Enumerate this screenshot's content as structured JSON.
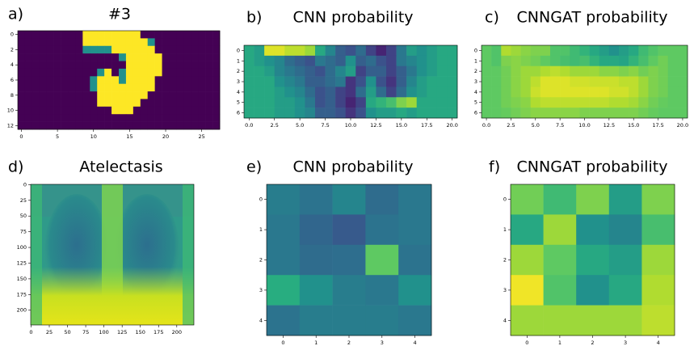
{
  "chart_data": [
    {
      "type": "heatmap",
      "label": "a)",
      "title": "#3",
      "colormap": "viridis",
      "xlim": [
        -0.5,
        27.5
      ],
      "ylim": [
        12.5,
        -0.5
      ],
      "xticks": [
        0,
        5,
        10,
        15,
        20,
        25
      ],
      "yticks": [
        0,
        2,
        4,
        6,
        8,
        10,
        12
      ],
      "values": [
        [
          0,
          0,
          0,
          0,
          0,
          0,
          0,
          0,
          0,
          1,
          1,
          1,
          1,
          1,
          1,
          1,
          1,
          0,
          0,
          0,
          0,
          0,
          0,
          0,
          0,
          0,
          0,
          0
        ],
        [
          0,
          0,
          0,
          0,
          0,
          0,
          0,
          0,
          0,
          1,
          1,
          1,
          1,
          1,
          1,
          1,
          1,
          1,
          0.5,
          0,
          0,
          0,
          0,
          0,
          0,
          0,
          0,
          0
        ],
        [
          0,
          0,
          0,
          0,
          0,
          0,
          0,
          0,
          0,
          0.5,
          0.5,
          0.5,
          0.5,
          1,
          1,
          1,
          1,
          1,
          1,
          0,
          0,
          0,
          0,
          0,
          0,
          0,
          0,
          0
        ],
        [
          0,
          0,
          0,
          0,
          0,
          0,
          0,
          0,
          0,
          0,
          0,
          0,
          0,
          0,
          0.5,
          1,
          1,
          1,
          1,
          1,
          0,
          0,
          0,
          0,
          0,
          0,
          0,
          0
        ],
        [
          0,
          0,
          0,
          0,
          0,
          0,
          0,
          0,
          0,
          0,
          0,
          0,
          0,
          0,
          0,
          1,
          1,
          1,
          1,
          1,
          0,
          0,
          0,
          0,
          0,
          0,
          0,
          0
        ],
        [
          0,
          0,
          0,
          0,
          0,
          0,
          0,
          0,
          0,
          0,
          0,
          0.5,
          1,
          0,
          0.5,
          1,
          1,
          1,
          1,
          1,
          0,
          0,
          0,
          0,
          0,
          0,
          0,
          0
        ],
        [
          0,
          0,
          0,
          0,
          0,
          0,
          0,
          0,
          0,
          0,
          0.5,
          1,
          1,
          1,
          0.5,
          1,
          1,
          1,
          1,
          0,
          0,
          0,
          0,
          0,
          0,
          0,
          0,
          0
        ],
        [
          0,
          0,
          0,
          0,
          0,
          0,
          0,
          0,
          0,
          0,
          0.5,
          1,
          1,
          1,
          1,
          1,
          1,
          1,
          1,
          0,
          0,
          0,
          0,
          0,
          0,
          0,
          0,
          0
        ],
        [
          0,
          0,
          0,
          0,
          0,
          0,
          0,
          0,
          0,
          0,
          0,
          1,
          1,
          1,
          1,
          1,
          1,
          1,
          0,
          0,
          0,
          0,
          0,
          0,
          0,
          0,
          0,
          0
        ],
        [
          0,
          0,
          0,
          0,
          0,
          0,
          0,
          0,
          0,
          0,
          0,
          1,
          1,
          1,
          1,
          1,
          1,
          0,
          0,
          0,
          0,
          0,
          0,
          0,
          0,
          0,
          0,
          0
        ],
        [
          0,
          0,
          0,
          0,
          0,
          0,
          0,
          0,
          0,
          0,
          0,
          0,
          0,
          1,
          1,
          1,
          0,
          0,
          0,
          0,
          0,
          0,
          0,
          0,
          0,
          0,
          0,
          0
        ],
        [
          0,
          0,
          0,
          0,
          0,
          0,
          0,
          0,
          0,
          0,
          0,
          0,
          0,
          0,
          0,
          0,
          0,
          0,
          0,
          0,
          0,
          0,
          0,
          0,
          0,
          0,
          0,
          0
        ],
        [
          0,
          0,
          0,
          0,
          0,
          0,
          0,
          0,
          0,
          0,
          0,
          0,
          0,
          0,
          0,
          0,
          0,
          0,
          0,
          0,
          0,
          0,
          0,
          0,
          0,
          0,
          0,
          0
        ]
      ]
    },
    {
      "type": "heatmap",
      "label": "b)",
      "title": "CNN probability",
      "colormap": "viridis",
      "xlim": [
        -0.5,
        20.5
      ],
      "ylim": [
        6.5,
        -0.5
      ],
      "xticks": [
        {
          "value": 0,
          "label": "0.0"
        },
        2.5,
        {
          "value": 5,
          "label": "5.0"
        },
        7.5,
        {
          "value": 10,
          "label": "10.0"
        },
        12.5,
        {
          "value": 15,
          "label": "15.0"
        },
        17.5,
        {
          "value": 20,
          "label": "20.0"
        }
      ],
      "yticks": [
        0,
        1,
        2,
        3,
        4,
        5,
        6
      ],
      "values": [
        [
          0.6,
          0.55,
          0.95,
          0.95,
          0.9,
          0.9,
          0.85,
          0.6,
          0.45,
          0.3,
          0.25,
          0.35,
          0.2,
          0.1,
          0.2,
          0.4,
          0.55,
          0.5,
          0.55,
          0.6,
          0.6
        ],
        [
          0.6,
          0.55,
          0.5,
          0.45,
          0.35,
          0.3,
          0.25,
          0.4,
          0.35,
          0.3,
          0.5,
          0.3,
          0.35,
          0.25,
          0.2,
          0.4,
          0.45,
          0.5,
          0.55,
          0.6,
          0.6
        ],
        [
          0.6,
          0.6,
          0.55,
          0.45,
          0.4,
          0.35,
          0.3,
          0.25,
          0.35,
          0.45,
          0.55,
          0.2,
          0.3,
          0.3,
          0.2,
          0.3,
          0.4,
          0.5,
          0.55,
          0.6,
          0.6
        ],
        [
          0.6,
          0.6,
          0.6,
          0.5,
          0.45,
          0.4,
          0.3,
          0.3,
          0.35,
          0.4,
          0.15,
          0.25,
          0.5,
          0.25,
          0.15,
          0.3,
          0.45,
          0.55,
          0.6,
          0.6,
          0.6
        ],
        [
          0.6,
          0.6,
          0.6,
          0.55,
          0.5,
          0.45,
          0.35,
          0.25,
          0.3,
          0.2,
          0.15,
          0.35,
          0.55,
          0.35,
          0.2,
          0.35,
          0.5,
          0.55,
          0.6,
          0.6,
          0.6
        ],
        [
          0.6,
          0.6,
          0.6,
          0.55,
          0.55,
          0.5,
          0.4,
          0.25,
          0.3,
          0.2,
          0.1,
          0.2,
          0.6,
          0.65,
          0.7,
          0.8,
          0.85,
          0.6,
          0.6,
          0.6,
          0.6
        ],
        [
          0.6,
          0.6,
          0.6,
          0.55,
          0.55,
          0.5,
          0.45,
          0.3,
          0.3,
          0.25,
          0.15,
          0.25,
          0.5,
          0.55,
          0.55,
          0.6,
          0.55,
          0.6,
          0.6,
          0.6,
          0.6
        ]
      ]
    },
    {
      "type": "heatmap",
      "label": "c)",
      "title": "CNNGAT probability",
      "colormap": "viridis",
      "xlim": [
        -0.5,
        20.5
      ],
      "ylim": [
        6.5,
        -0.5
      ],
      "xticks": [
        {
          "value": 0,
          "label": "0.0"
        },
        2.5,
        {
          "value": 5,
          "label": "5.0"
        },
        7.5,
        {
          "value": 10,
          "label": "10.0"
        },
        12.5,
        {
          "value": 15,
          "label": "15.0"
        },
        17.5,
        {
          "value": 20,
          "label": "20.0"
        }
      ],
      "yticks": [
        0,
        1,
        2,
        3,
        4,
        5,
        6
      ],
      "values": [
        [
          0.75,
          0.72,
          0.88,
          0.85,
          0.82,
          0.8,
          0.8,
          0.72,
          0.72,
          0.68,
          0.65,
          0.6,
          0.55,
          0.5,
          0.55,
          0.6,
          0.68,
          0.72,
          0.75,
          0.75,
          0.75
        ],
        [
          0.75,
          0.72,
          0.8,
          0.82,
          0.8,
          0.78,
          0.75,
          0.72,
          0.7,
          0.68,
          0.7,
          0.65,
          0.6,
          0.6,
          0.58,
          0.65,
          0.7,
          0.75,
          0.78,
          0.75,
          0.75
        ],
        [
          0.75,
          0.75,
          0.78,
          0.82,
          0.85,
          0.85,
          0.88,
          0.9,
          0.88,
          0.85,
          0.85,
          0.85,
          0.82,
          0.82,
          0.8,
          0.82,
          0.78,
          0.8,
          0.78,
          0.75,
          0.75
        ],
        [
          0.75,
          0.75,
          0.78,
          0.82,
          0.85,
          0.9,
          0.95,
          0.95,
          0.95,
          0.93,
          0.93,
          0.92,
          0.92,
          0.92,
          0.9,
          0.9,
          0.85,
          0.8,
          0.78,
          0.75,
          0.75
        ],
        [
          0.75,
          0.75,
          0.78,
          0.82,
          0.85,
          0.92,
          0.95,
          0.95,
          0.95,
          0.95,
          0.95,
          0.95,
          0.95,
          0.93,
          0.93,
          0.9,
          0.85,
          0.8,
          0.78,
          0.75,
          0.75
        ],
        [
          0.75,
          0.75,
          0.78,
          0.8,
          0.82,
          0.88,
          0.9,
          0.9,
          0.9,
          0.9,
          0.9,
          0.9,
          0.9,
          0.88,
          0.88,
          0.86,
          0.82,
          0.78,
          0.76,
          0.75,
          0.75
        ],
        [
          0.75,
          0.75,
          0.76,
          0.78,
          0.8,
          0.82,
          0.82,
          0.82,
          0.82,
          0.82,
          0.8,
          0.8,
          0.8,
          0.8,
          0.8,
          0.8,
          0.78,
          0.76,
          0.75,
          0.75,
          0.75
        ]
      ]
    },
    {
      "type": "image",
      "label": "d)",
      "title": "Atelectasis",
      "xlim": [
        -0.5,
        223.5
      ],
      "ylim": [
        223.5,
        -0.5
      ],
      "xticks": [
        0,
        25,
        50,
        75,
        100,
        125,
        150,
        175,
        200
      ],
      "yticks": [
        0,
        25,
        50,
        75,
        100,
        125,
        150,
        175,
        200
      ]
    },
    {
      "type": "heatmap",
      "label": "e)",
      "title": "CNN probability",
      "colormap": "viridis",
      "xlim": [
        -0.5,
        4.5
      ],
      "ylim": [
        4.5,
        -0.5
      ],
      "xticks": [
        0,
        1,
        2,
        3,
        4
      ],
      "yticks": [
        0,
        1,
        2,
        3,
        4
      ],
      "values": [
        [
          0.42,
          0.38,
          0.45,
          0.35,
          0.4
        ],
        [
          0.4,
          0.33,
          0.28,
          0.38,
          0.4
        ],
        [
          0.4,
          0.35,
          0.36,
          0.75,
          0.38
        ],
        [
          0.62,
          0.5,
          0.42,
          0.4,
          0.5
        ],
        [
          0.38,
          0.42,
          0.42,
          0.42,
          0.4
        ]
      ]
    },
    {
      "type": "heatmap",
      "label": "f)",
      "title": "CNNGAT probability",
      "colormap": "viridis",
      "xlim": [
        -0.5,
        4.5
      ],
      "ylim": [
        4.5,
        -0.5
      ],
      "xticks": [
        0,
        1,
        2,
        3,
        4
      ],
      "yticks": [
        0,
        1,
        2,
        3,
        4
      ],
      "values": [
        [
          0.78,
          0.68,
          0.8,
          0.55,
          0.8
        ],
        [
          0.6,
          0.85,
          0.5,
          0.45,
          0.7
        ],
        [
          0.85,
          0.75,
          0.6,
          0.55,
          0.85
        ],
        [
          0.98,
          0.72,
          0.5,
          0.6,
          0.88
        ],
        [
          0.85,
          0.85,
          0.85,
          0.85,
          0.9
        ]
      ]
    }
  ]
}
